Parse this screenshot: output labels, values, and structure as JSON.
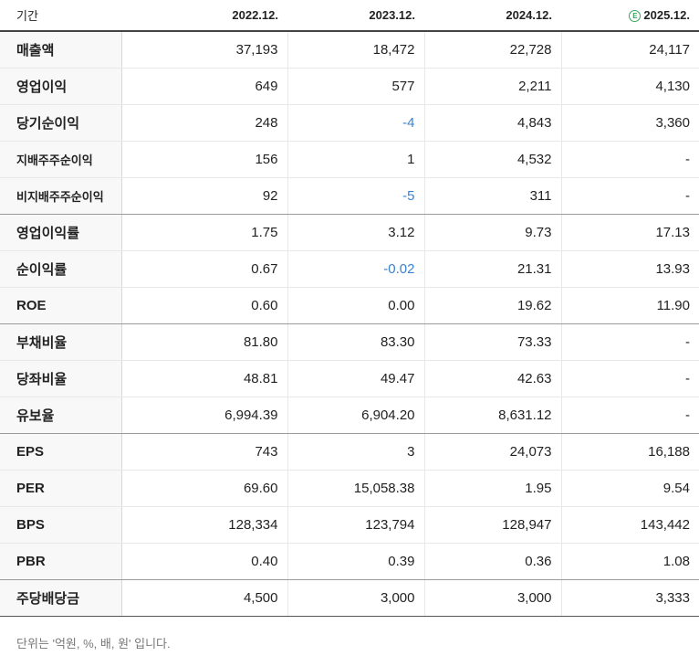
{
  "header": {
    "label": "기간",
    "periods": [
      "2022.12.",
      "2023.12.",
      "2024.12.",
      "2025.12."
    ],
    "estimate_icon_glyph": "E",
    "estimate_color": "#3aa55d"
  },
  "rows": [
    {
      "label": "매출액",
      "values": [
        "37,193",
        "18,472",
        "22,728",
        "24,117"
      ]
    },
    {
      "label": "영업이익",
      "values": [
        "649",
        "577",
        "2,211",
        "4,130"
      ]
    },
    {
      "label": "당기순이익",
      "values": [
        "248",
        "-4",
        "4,843",
        "3,360"
      ]
    },
    {
      "label": "지배주주순이익",
      "values": [
        "156",
        "1",
        "4,532",
        "-"
      ]
    },
    {
      "label": "비지배주주순이익",
      "values": [
        "92",
        "-5",
        "311",
        "-"
      ]
    },
    {
      "label": "영업이익률",
      "values": [
        "1.75",
        "3.12",
        "9.73",
        "17.13"
      ]
    },
    {
      "label": "순이익률",
      "values": [
        "0.67",
        "-0.02",
        "21.31",
        "13.93"
      ]
    },
    {
      "label": "ROE",
      "values": [
        "0.60",
        "0.00",
        "19.62",
        "11.90"
      ]
    },
    {
      "label": "부채비율",
      "values": [
        "81.80",
        "83.30",
        "73.33",
        "-"
      ]
    },
    {
      "label": "당좌비율",
      "values": [
        "48.81",
        "49.47",
        "42.63",
        "-"
      ]
    },
    {
      "label": "유보율",
      "values": [
        "6,994.39",
        "6,904.20",
        "8,631.12",
        "-"
      ]
    },
    {
      "label": "EPS",
      "values": [
        "743",
        "3",
        "24,073",
        "16,188"
      ]
    },
    {
      "label": "PER",
      "values": [
        "69.60",
        "15,058.38",
        "1.95",
        "9.54"
      ]
    },
    {
      "label": "BPS",
      "values": [
        "128,334",
        "123,794",
        "128,947",
        "143,442"
      ]
    },
    {
      "label": "PBR",
      "values": [
        "0.40",
        "0.39",
        "0.36",
        "1.08"
      ]
    },
    {
      "label": "주당배당금",
      "values": [
        "4,500",
        "3,000",
        "3,000",
        "3,333"
      ]
    }
  ],
  "colors": {
    "negative_value": "#3a83d0",
    "label_background": "#f8f8f8"
  },
  "footnote": "단위는 '억원, %, 배, 원' 입니다."
}
